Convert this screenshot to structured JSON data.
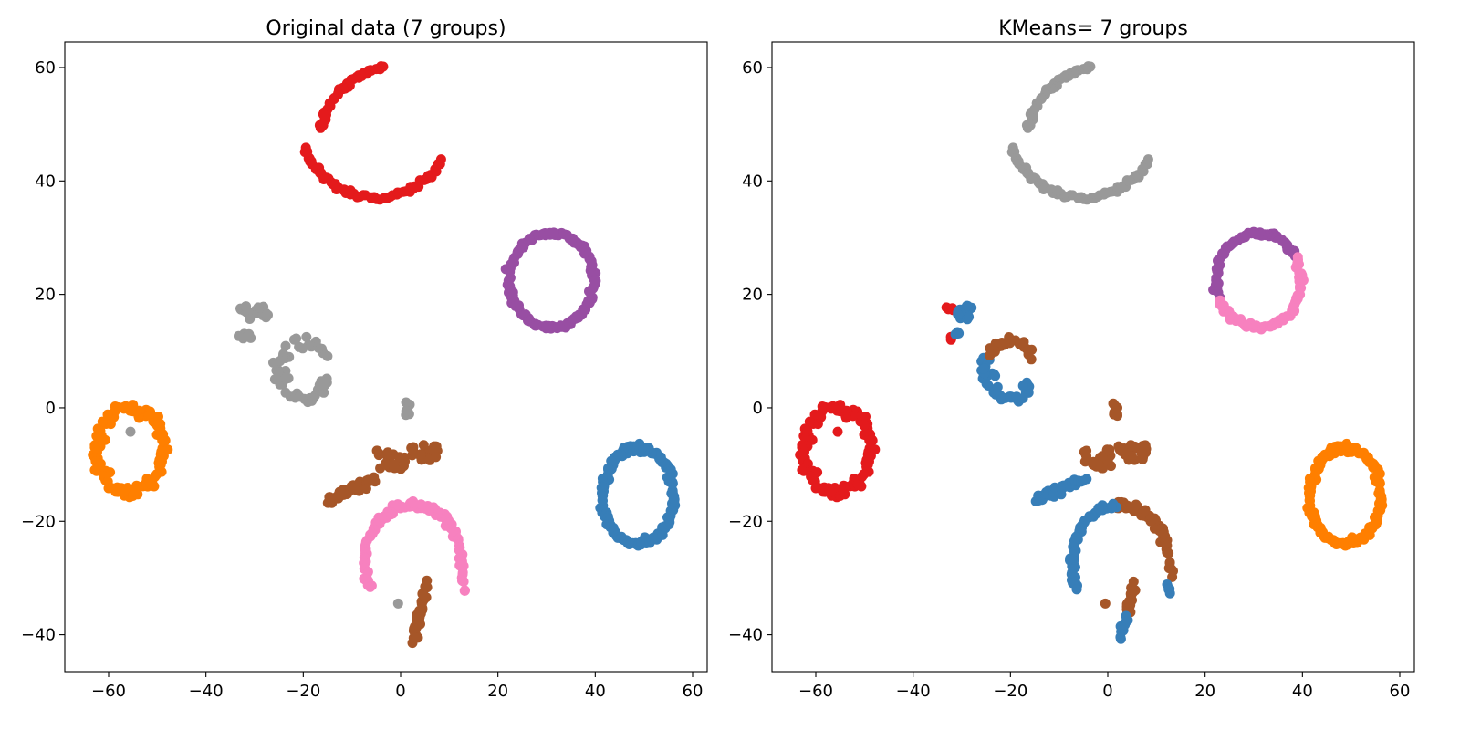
{
  "palette": {
    "red": "#e41a1c",
    "blue": "#377eb8",
    "purple": "#984ea3",
    "orange": "#ff7f00",
    "brown": "#a65628",
    "pink": "#f781bf",
    "grey": "#999999"
  },
  "chart_data": [
    {
      "type": "scatter",
      "title": "Original data (7 groups)",
      "xlabel": "",
      "ylabel": "",
      "xlim": [
        -69,
        63
      ],
      "ylim": [
        -46.5,
        64.5
      ],
      "xticks": [
        -60,
        -40,
        -20,
        0,
        20,
        40,
        60
      ],
      "xtick_labels": [
        "−60",
        "−40",
        "−20",
        "0",
        "20",
        "40",
        "60"
      ],
      "yticks": [
        -40,
        -20,
        0,
        20,
        40,
        60
      ],
      "ytick_labels": [
        "−40",
        "−20",
        "0",
        "20",
        "40",
        "60"
      ],
      "grid": false,
      "point_groups": [
        {
          "color": "red",
          "shape": "arc",
          "center": [
            -2,
            45
          ],
          "radius": [
            15,
            15
          ],
          "angles": [
            95,
            165
          ],
          "count": 45,
          "jitter": 0.5
        },
        {
          "color": "red",
          "shape": "arc",
          "center": [
            -5,
            49
          ],
          "radius": [
            15,
            12
          ],
          "angles": [
            195,
            265
          ],
          "count": 35,
          "jitter": 0.5
        },
        {
          "color": "red",
          "shape": "arc",
          "center": [
            -5,
            49
          ],
          "radius": [
            15,
            12
          ],
          "angles": [
            265,
            335
          ],
          "count": 30,
          "jitter": 0.5
        },
        {
          "color": "purple",
          "shape": "arc",
          "center": [
            31,
            22.5
          ],
          "radius": [
            8.7,
            8.3
          ],
          "angles": [
            0,
            360
          ],
          "count": 140,
          "jitter": 0.5
        },
        {
          "color": "blue",
          "shape": "arc",
          "center": [
            48.8,
            -15.5
          ],
          "radius": [
            7.3,
            8.5
          ],
          "angles": [
            0,
            360
          ],
          "count": 150,
          "jitter": 0.6
        },
        {
          "color": "orange",
          "shape": "arc",
          "center": [
            -55.5,
            -7.5
          ],
          "radius": [
            6.8,
            7.2
          ],
          "angles": [
            0,
            360
          ],
          "count": 110,
          "jitter": 1.2
        },
        {
          "color": "grey",
          "shape": "points",
          "xy": [
            [
              -55.5,
              -4.2
            ]
          ]
        },
        {
          "color": "grey",
          "shape": "arc",
          "center": [
            -20,
            6.5
          ],
          "radius": [
            5.2,
            5.2
          ],
          "angles": [
            30,
            320
          ],
          "count": 40,
          "jitter": 1.0
        },
        {
          "color": "grey",
          "shape": "cluster",
          "center": [
            -30,
            16.8
          ],
          "spread": [
            3,
            1.2
          ],
          "count": 20
        },
        {
          "color": "grey",
          "shape": "cluster",
          "center": [
            -32,
            12.7
          ],
          "spread": [
            1.5,
            0.5
          ],
          "count": 6
        },
        {
          "color": "grey",
          "shape": "cluster",
          "center": [
            -24.5,
            6
          ],
          "spread": [
            1.5,
            1.0
          ],
          "count": 8
        },
        {
          "color": "grey",
          "shape": "cluster",
          "center": [
            -17,
            4.5
          ],
          "spread": [
            2,
            0.7
          ],
          "count": 6
        },
        {
          "color": "grey",
          "shape": "cluster",
          "center": [
            1.5,
            -0.2
          ],
          "spread": [
            0.5,
            1.2
          ],
          "count": 8
        },
        {
          "color": "grey",
          "shape": "points",
          "xy": [
            [
              -0.5,
              -34.5
            ]
          ]
        },
        {
          "color": "brown",
          "shape": "line",
          "from": [
            -15,
            -16.5
          ],
          "to": [
            -5,
            -12.5
          ],
          "count": 40,
          "jitter": 0.9
        },
        {
          "color": "brown",
          "shape": "cluster",
          "center": [
            -2,
            -9
          ],
          "spread": [
            3,
            2
          ],
          "count": 25
        },
        {
          "color": "brown",
          "shape": "cluster",
          "center": [
            5,
            -8
          ],
          "spread": [
            3,
            1.5
          ],
          "count": 25
        },
        {
          "color": "brown",
          "shape": "line",
          "from": [
            2.5,
            -41
          ],
          "to": [
            5.5,
            -31
          ],
          "count": 35,
          "jitter": 0.8
        },
        {
          "color": "pink",
          "shape": "arc",
          "center": [
            2.5,
            -27.5
          ],
          "radius": [
            10,
            10.5
          ],
          "angles": [
            20,
            170
          ],
          "count": 75,
          "jitter": 0.7
        },
        {
          "color": "pink",
          "shape": "arc",
          "center": [
            2.5,
            -27.5
          ],
          "radius": [
            10,
            10.5
          ],
          "angles": [
            170,
            205
          ],
          "count": 20,
          "jitter": 0.7
        },
        {
          "color": "pink",
          "shape": "line",
          "from": [
            12,
            -24
          ],
          "to": [
            13,
            -32.5
          ],
          "count": 15,
          "jitter": 0.6
        }
      ]
    },
    {
      "type": "scatter",
      "title": "KMeans= 7 groups",
      "xlabel": "",
      "ylabel": "",
      "xlim": [
        -69,
        63
      ],
      "ylim": [
        -46.5,
        64.5
      ],
      "xticks": [
        -60,
        -40,
        -20,
        0,
        20,
        40,
        60
      ],
      "xtick_labels": [
        "−60",
        "−40",
        "−20",
        "0",
        "20",
        "40",
        "60"
      ],
      "yticks": [
        -40,
        -20,
        0,
        20,
        40,
        60
      ],
      "ytick_labels": [
        "−40",
        "−20",
        "0",
        "20",
        "40",
        "60"
      ],
      "grid": false,
      "point_groups": [
        {
          "color": "grey",
          "shape": "arc",
          "center": [
            -2,
            45
          ],
          "radius": [
            15,
            15
          ],
          "angles": [
            95,
            165
          ],
          "count": 45,
          "jitter": 0.5
        },
        {
          "color": "grey",
          "shape": "arc",
          "center": [
            -5,
            49
          ],
          "radius": [
            15,
            12
          ],
          "angles": [
            195,
            265
          ],
          "count": 35,
          "jitter": 0.5
        },
        {
          "color": "grey",
          "shape": "arc",
          "center": [
            -5,
            49
          ],
          "radius": [
            15,
            12
          ],
          "angles": [
            265,
            335
          ],
          "count": 30,
          "jitter": 0.5
        },
        {
          "color": "purple",
          "shape": "arc",
          "center": [
            31,
            22.5
          ],
          "radius": [
            8.7,
            8.3
          ],
          "angles": [
            30,
            205
          ],
          "count": 70,
          "jitter": 0.5
        },
        {
          "color": "pink",
          "shape": "arc",
          "center": [
            31,
            22.5
          ],
          "radius": [
            8.7,
            8.3
          ],
          "angles": [
            205,
            390
          ],
          "count": 70,
          "jitter": 0.5
        },
        {
          "color": "orange",
          "shape": "arc",
          "center": [
            48.8,
            -15.5
          ],
          "radius": [
            7.3,
            8.5
          ],
          "angles": [
            0,
            360
          ],
          "count": 150,
          "jitter": 0.6
        },
        {
          "color": "red",
          "shape": "arc",
          "center": [
            -55.5,
            -7.5
          ],
          "radius": [
            6.8,
            7.2
          ],
          "angles": [
            0,
            360
          ],
          "count": 110,
          "jitter": 1.2
        },
        {
          "color": "red",
          "shape": "points",
          "xy": [
            [
              -55.5,
              -4.2
            ]
          ]
        },
        {
          "color": "red",
          "shape": "cluster",
          "center": [
            -32.5,
            17.5
          ],
          "spread": [
            0.8,
            0.3
          ],
          "count": 4
        },
        {
          "color": "red",
          "shape": "cluster",
          "center": [
            -32.5,
            12.3
          ],
          "spread": [
            0.5,
            0.3
          ],
          "count": 3
        },
        {
          "color": "blue",
          "shape": "cluster",
          "center": [
            -29,
            16.8
          ],
          "spread": [
            2,
            1.2
          ],
          "count": 16
        },
        {
          "color": "blue",
          "shape": "cluster",
          "center": [
            -30.5,
            13
          ],
          "spread": [
            0.8,
            0.4
          ],
          "count": 4
        },
        {
          "color": "blue",
          "shape": "arc",
          "center": [
            -20,
            6.5
          ],
          "radius": [
            5.2,
            5.2
          ],
          "angles": [
            150,
            320
          ],
          "count": 28,
          "jitter": 1.0
        },
        {
          "color": "blue",
          "shape": "cluster",
          "center": [
            -24.5,
            6
          ],
          "spread": [
            1.5,
            1.0
          ],
          "count": 8
        },
        {
          "color": "blue",
          "shape": "cluster",
          "center": [
            -17,
            4
          ],
          "spread": [
            1.5,
            0.6
          ],
          "count": 5
        },
        {
          "color": "brown",
          "shape": "arc",
          "center": [
            -20,
            6.5
          ],
          "radius": [
            5.2,
            5.2
          ],
          "angles": [
            30,
            150
          ],
          "count": 22,
          "jitter": 0.9
        },
        {
          "color": "brown",
          "shape": "cluster",
          "center": [
            1.5,
            -0.2
          ],
          "spread": [
            0.5,
            1.2
          ],
          "count": 8
        },
        {
          "color": "brown",
          "shape": "points",
          "xy": [
            [
              -0.5,
              -34.5
            ]
          ]
        },
        {
          "color": "blue",
          "shape": "line",
          "from": [
            -15,
            -16.5
          ],
          "to": [
            -5,
            -12.5
          ],
          "count": 40,
          "jitter": 0.9
        },
        {
          "color": "brown",
          "shape": "cluster",
          "center": [
            -2,
            -9
          ],
          "spread": [
            3,
            2
          ],
          "count": 25
        },
        {
          "color": "brown",
          "shape": "cluster",
          "center": [
            5,
            -8
          ],
          "spread": [
            3,
            1.5
          ],
          "count": 25
        },
        {
          "color": "brown",
          "shape": "line",
          "from": [
            4,
            -36
          ],
          "to": [
            5.5,
            -31
          ],
          "count": 22,
          "jitter": 0.8
        },
        {
          "color": "blue",
          "shape": "line",
          "from": [
            2.5,
            -41
          ],
          "to": [
            4,
            -36.5
          ],
          "count": 12,
          "jitter": 0.7
        },
        {
          "color": "brown",
          "shape": "arc",
          "center": [
            2.5,
            -27.5
          ],
          "radius": [
            10,
            10.5
          ],
          "angles": [
            20,
            95
          ],
          "count": 40,
          "jitter": 0.7
        },
        {
          "color": "blue",
          "shape": "arc",
          "center": [
            2.5,
            -27.5
          ],
          "radius": [
            10,
            10.5
          ],
          "angles": [
            95,
            205
          ],
          "count": 55,
          "jitter": 0.7
        },
        {
          "color": "brown",
          "shape": "line",
          "from": [
            12,
            -24
          ],
          "to": [
            13,
            -30
          ],
          "count": 10,
          "jitter": 0.6
        },
        {
          "color": "blue",
          "shape": "line",
          "from": [
            12.5,
            -31
          ],
          "to": [
            13,
            -33
          ],
          "count": 5,
          "jitter": 0.4
        }
      ]
    }
  ]
}
